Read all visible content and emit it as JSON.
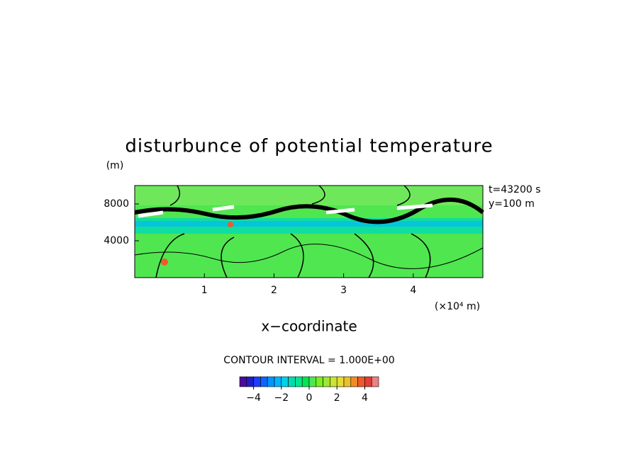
{
  "chart_data": {
    "type": "contour",
    "title": "disturbunce of potential temperature",
    "y_unit_label": "(m)",
    "annotations": [
      "t=43200 s",
      "y=100 m"
    ],
    "x_label": "x−coordinate",
    "x_unit_label": "(×10⁴ m)",
    "xlim": [
      0,
      5
    ],
    "xticks": [
      1,
      2,
      3,
      4
    ],
    "ylim": [
      0,
      10000
    ],
    "yticks": [
      4000,
      8000
    ],
    "contour_interval_label": "CONTOUR INTERVAL = 1.000E+00",
    "colorbar": {
      "levels": [
        -5,
        -4.5,
        -4,
        -3.5,
        -3,
        -2.5,
        -2,
        -1.5,
        -1,
        -0.5,
        0,
        0.5,
        1,
        1.5,
        2,
        2.5,
        3,
        3.5,
        4,
        4.5,
        5
      ],
      "colors": [
        "#4b0b9c",
        "#1e1ec8",
        "#1e3cff",
        "#0a64ff",
        "#0096ff",
        "#00b4ff",
        "#00d2e6",
        "#00dcb4",
        "#00e68c",
        "#00e650",
        "#50e650",
        "#78f01e",
        "#a0e632",
        "#c8e632",
        "#e6dc32",
        "#f0be28",
        "#f08c28",
        "#f05a28",
        "#e63c3c",
        "#f08080"
      ],
      "ticks": [
        {
          "value": -4,
          "label": "−4"
        },
        {
          "value": -2,
          "label": "−2"
        },
        0,
        2,
        4
      ]
    }
  }
}
